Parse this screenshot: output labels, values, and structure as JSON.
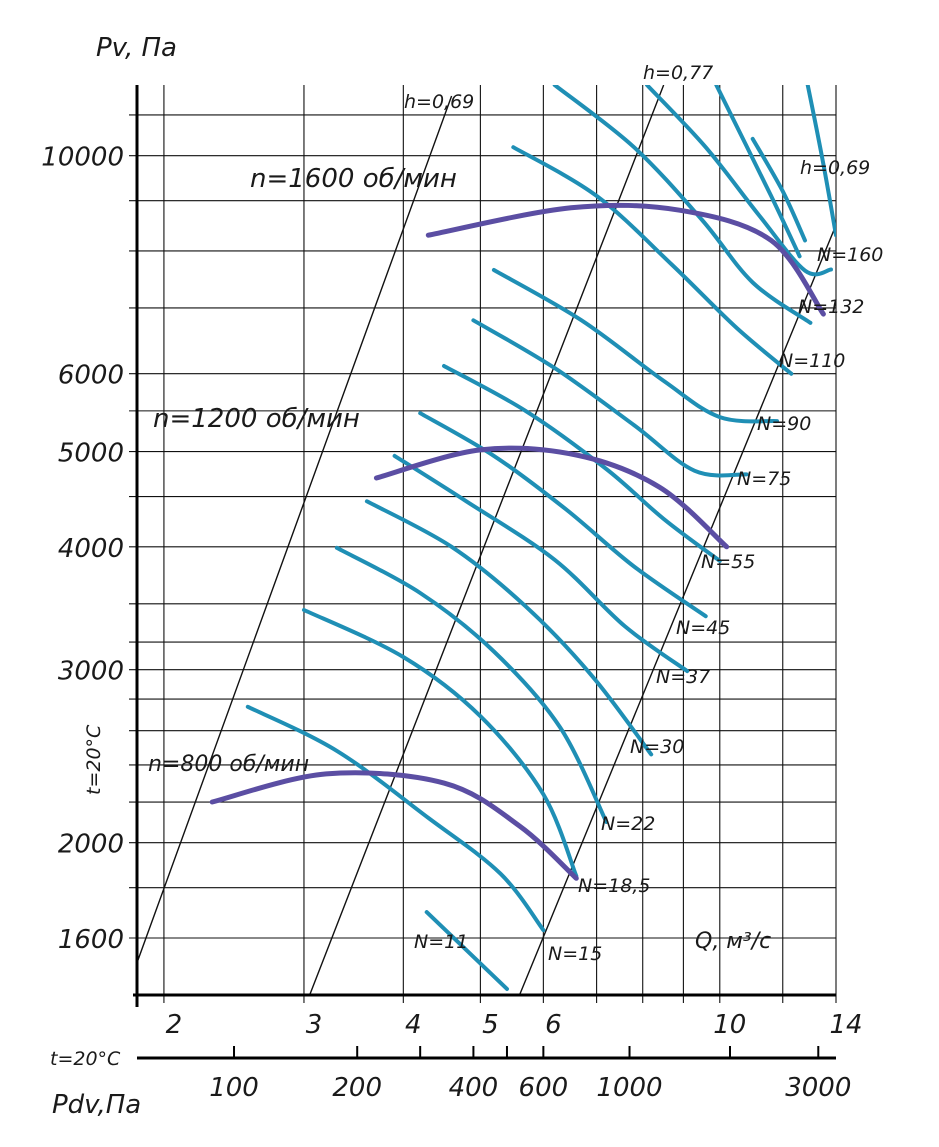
{
  "chart_data": {
    "type": "line",
    "title": "",
    "ylabel": "Pv, Па",
    "xlabel": "Q, м³/с",
    "pd_label": "Pdv,Па",
    "temp_label": "t=20°C",
    "y_scale": "log",
    "x_scale": "log",
    "ylim": [
      1400,
      11800
    ],
    "xlim": [
      1.85,
      14
    ],
    "grid": true,
    "y_ticks": [
      {
        "value": 1600,
        "label": "1600"
      },
      {
        "value": 2000,
        "label": "2000"
      },
      {
        "value": 3000,
        "label": "3000"
      },
      {
        "value": 4000,
        "label": "4000"
      },
      {
        "value": 5000,
        "label": "5000"
      },
      {
        "value": 6000,
        "label": "6000"
      },
      {
        "value": 10000,
        "label": "10000"
      }
    ],
    "y_grid_values": [
      1800,
      2200,
      2400,
      2600,
      2800,
      3200,
      3500,
      4500,
      5500,
      7000,
      8000,
      9000,
      11000
    ],
    "x_ticks": [
      {
        "value": 2,
        "label": "2"
      },
      {
        "value": 3,
        "label": "3"
      },
      {
        "value": 4,
        "label": "4"
      },
      {
        "value": 5,
        "label": "5"
      },
      {
        "value": 6,
        "label": "6"
      },
      {
        "value": 10,
        "label": "10"
      },
      {
        "value": 14,
        "label": "14"
      }
    ],
    "x_grid_values": [
      7,
      8,
      9,
      12
    ],
    "pd_ticks": [
      {
        "q": 2.45,
        "label": "100"
      },
      {
        "q": 3.5,
        "label": "200"
      },
      {
        "q": 4.9,
        "label": "400"
      },
      {
        "q": 6.0,
        "label": "600"
      },
      {
        "q": 7.7,
        "label": "1000"
      },
      {
        "q": 13.3,
        "label": "3000"
      }
    ],
    "pd_minor_ticks": [
      4.2,
      5.4,
      10.3
    ],
    "efficiency_rays": [
      {
        "label": "h=0,69",
        "points": [
          [
            1.85,
            1510
          ],
          [
            4.6,
            11500
          ]
        ]
      },
      {
        "label": "h=0,77",
        "points": [
          [
            3.05,
            1400
          ],
          [
            8.5,
            11800
          ]
        ]
      },
      {
        "label": "h=0,69",
        "points": [
          [
            5.6,
            1400
          ],
          [
            14,
            8500
          ]
        ]
      }
    ],
    "power_curves": [
      {
        "label": "N=11",
        "points": [
          [
            4.28,
            1700
          ],
          [
            5.4,
            1420
          ]
        ]
      },
      {
        "label": "N=15",
        "points": [
          [
            2.55,
            2750
          ],
          [
            3.3,
            2480
          ],
          [
            4.3,
            2120
          ],
          [
            5.3,
            1860
          ],
          [
            6.0,
            1630
          ]
        ]
      },
      {
        "label": "N=18,5",
        "points": [
          [
            3.0,
            3450
          ],
          [
            4.0,
            3090
          ],
          [
            5.0,
            2690
          ],
          [
            6.0,
            2240
          ],
          [
            6.6,
            1850
          ]
        ]
      },
      {
        "label": "N=22",
        "points": [
          [
            3.3,
            3990
          ],
          [
            4.2,
            3590
          ],
          [
            5.2,
            3130
          ],
          [
            6.3,
            2620
          ],
          [
            7.2,
            2100
          ]
        ]
      },
      {
        "label": "N=30",
        "points": [
          [
            3.6,
            4450
          ],
          [
            4.6,
            4000
          ],
          [
            5.7,
            3480
          ],
          [
            6.9,
            2960
          ],
          [
            8.2,
            2460
          ]
        ]
      },
      {
        "label": "N=37",
        "points": [
          [
            3.9,
            4950
          ],
          [
            4.8,
            4450
          ],
          [
            6.2,
            3880
          ],
          [
            7.6,
            3320
          ],
          [
            9.1,
            2990
          ]
        ]
      },
      {
        "label": "N=45",
        "points": [
          [
            4.2,
            5470
          ],
          [
            5.2,
            4950
          ],
          [
            6.4,
            4370
          ],
          [
            7.8,
            3820
          ],
          [
            9.6,
            3400
          ]
        ]
      },
      {
        "label": "N=55",
        "points": [
          [
            4.5,
            6110
          ],
          [
            5.7,
            5500
          ],
          [
            7.2,
            4800
          ],
          [
            8.5,
            4270
          ],
          [
            10.0,
            3870
          ]
        ]
      },
      {
        "label": "N=75",
        "points": [
          [
            4.9,
            6800
          ],
          [
            6.2,
            6080
          ],
          [
            7.8,
            5320
          ],
          [
            9.3,
            4780
          ],
          [
            10.8,
            4740
          ]
        ]
      },
      {
        "label": "N=90",
        "points": [
          [
            5.2,
            7650
          ],
          [
            6.7,
            6800
          ],
          [
            8.5,
            5900
          ],
          [
            10.0,
            5420
          ],
          [
            11.8,
            5370
          ]
        ]
      },
      {
        "label": "N=110",
        "points": [
          [
            5.5,
            10200
          ],
          [
            7.0,
            9100
          ],
          [
            8.7,
            7750
          ],
          [
            10.5,
            6680
          ],
          [
            12.3,
            6000
          ]
        ]
      },
      {
        "label": "N=132",
        "points": [
          [
            6.2,
            11800
          ],
          [
            7.8,
            10200
          ],
          [
            9.5,
            8600
          ],
          [
            11.0,
            7430
          ],
          [
            13.0,
            6760
          ]
        ]
      },
      {
        "label": "N=160",
        "points": [
          [
            8.1,
            11800
          ],
          [
            9.6,
            10200
          ],
          [
            11.2,
            8700
          ],
          [
            12.8,
            7640
          ],
          [
            13.8,
            7660
          ]
        ]
      }
    ],
    "extra_curve_tops": [
      [
        9.9,
        11800
      ],
      [
        11.0,
        10400
      ],
      [
        12.9,
        11800
      ]
    ],
    "speed_curves": [
      {
        "label": "n=800 об/мин",
        "points": [
          [
            2.3,
            2200
          ],
          [
            3.2,
            2350
          ],
          [
            4.5,
            2300
          ],
          [
            5.6,
            2080
          ],
          [
            6.6,
            1840
          ]
        ]
      },
      {
        "label": "n=1200 об/мин",
        "points": [
          [
            3.7,
            4700
          ],
          [
            5.0,
            5020
          ],
          [
            6.6,
            4960
          ],
          [
            8.4,
            4600
          ],
          [
            10.2,
            4000
          ]
        ]
      },
      {
        "label": "n=1600 об/мин",
        "points": [
          [
            4.3,
            8300
          ],
          [
            6.5,
            8850
          ],
          [
            8.9,
            8800
          ],
          [
            11.6,
            8200
          ],
          [
            13.5,
            6900
          ]
        ]
      }
    ],
    "colors": {
      "power_curve": "#1f8fb5",
      "speed_curve": "#5b4ea3",
      "grid": "#111111",
      "text": "#1a1a1a"
    }
  }
}
